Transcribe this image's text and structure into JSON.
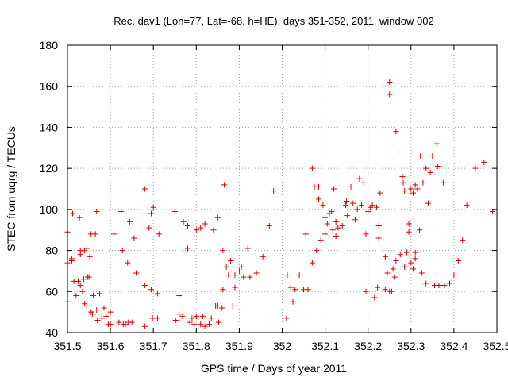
{
  "chart_data": {
    "type": "scatter",
    "title": "Rec. dav1 (Lon=77, Lat=-68, h=HE), days 351-352, 2011, window 002",
    "xlabel": "GPS time / Days of year 2011",
    "ylabel": "STEC from uqrg / TECUs",
    "xlim": [
      351.5,
      352.5
    ],
    "ylim": [
      40,
      180
    ],
    "xticks": [
      "351.5",
      "351.6",
      "351.7",
      "351.8",
      "351.9",
      "352",
      "352.1",
      "352.2",
      "352.3",
      "352.4",
      "352.5"
    ],
    "yticks": [
      "40",
      "60",
      "80",
      "100",
      "120",
      "140",
      "160",
      "180"
    ],
    "grid": true,
    "marker": "+",
    "color": "#e00000",
    "points": [
      [
        351.5,
        89
      ],
      [
        351.5,
        74
      ],
      [
        351.5,
        55
      ],
      [
        351.51,
        76
      ],
      [
        351.51,
        75
      ],
      [
        351.512,
        98
      ],
      [
        351.515,
        65
      ],
      [
        351.52,
        58
      ],
      [
        351.525,
        65
      ],
      [
        351.528,
        96
      ],
      [
        351.53,
        78
      ],
      [
        351.53,
        80
      ],
      [
        351.53,
        63
      ],
      [
        351.535,
        60
      ],
      [
        351.538,
        66
      ],
      [
        351.54,
        80
      ],
      [
        351.54,
        54
      ],
      [
        351.545,
        53
      ],
      [
        351.545,
        81
      ],
      [
        351.547,
        67
      ],
      [
        351.55,
        67
      ],
      [
        351.552,
        77
      ],
      [
        351.555,
        88
      ],
      [
        351.555,
        50
      ],
      [
        351.558,
        49
      ],
      [
        351.56,
        58
      ],
      [
        351.565,
        88
      ],
      [
        351.568,
        99
      ],
      [
        351.568,
        51
      ],
      [
        351.57,
        46
      ],
      [
        351.575,
        59
      ],
      [
        351.58,
        47
      ],
      [
        351.585,
        52
      ],
      [
        351.59,
        48
      ],
      [
        351.595,
        44
      ],
      [
        351.6,
        44
      ],
      [
        351.6,
        50
      ],
      [
        351.608,
        88
      ],
      [
        351.62,
        45
      ],
      [
        351.625,
        99
      ],
      [
        351.628,
        80
      ],
      [
        351.63,
        44
      ],
      [
        351.635,
        44
      ],
      [
        351.64,
        74
      ],
      [
        351.642,
        45
      ],
      [
        351.645,
        94
      ],
      [
        351.65,
        45
      ],
      [
        351.655,
        86
      ],
      [
        351.66,
        69
      ],
      [
        351.68,
        43
      ],
      [
        351.68,
        63
      ],
      [
        351.68,
        110
      ],
      [
        351.69,
        91
      ],
      [
        351.695,
        61
      ],
      [
        351.695,
        98
      ],
      [
        351.698,
        47
      ],
      [
        351.7,
        101
      ],
      [
        351.71,
        59
      ],
      [
        351.71,
        47
      ],
      [
        351.713,
        88
      ],
      [
        351.75,
        99
      ],
      [
        351.752,
        46
      ],
      [
        351.76,
        58
      ],
      [
        351.76,
        49
      ],
      [
        351.768,
        48
      ],
      [
        351.77,
        94
      ],
      [
        351.78,
        92
      ],
      [
        351.78,
        81
      ],
      [
        351.785,
        45
      ],
      [
        351.79,
        47
      ],
      [
        351.795,
        44
      ],
      [
        351.8,
        48
      ],
      [
        351.8,
        90
      ],
      [
        351.81,
        91
      ],
      [
        351.81,
        44
      ],
      [
        351.815,
        48
      ],
      [
        351.82,
        43
      ],
      [
        351.82,
        93
      ],
      [
        351.83,
        44
      ],
      [
        351.835,
        47
      ],
      [
        351.84,
        90
      ],
      [
        351.845,
        53
      ],
      [
        351.85,
        96
      ],
      [
        351.85,
        53
      ],
      [
        351.852,
        45
      ],
      [
        351.86,
        52
      ],
      [
        351.862,
        61
      ],
      [
        351.862,
        80
      ],
      [
        351.865,
        112
      ],
      [
        351.87,
        72
      ],
      [
        351.875,
        68
      ],
      [
        351.88,
        75
      ],
      [
        351.885,
        53
      ],
      [
        351.89,
        68
      ],
      [
        351.89,
        62
      ],
      [
        351.9,
        70
      ],
      [
        351.905,
        72
      ],
      [
        351.91,
        67
      ],
      [
        351.92,
        81
      ],
      [
        351.925,
        67
      ],
      [
        351.94,
        69
      ],
      [
        351.955,
        77
      ],
      [
        351.97,
        92
      ],
      [
        351.98,
        109
      ],
      [
        352.01,
        47
      ],
      [
        352.012,
        68
      ],
      [
        352.02,
        62
      ],
      [
        352.025,
        55
      ],
      [
        352.03,
        61
      ],
      [
        352.04,
        68
      ],
      [
        352.05,
        61
      ],
      [
        352.055,
        88
      ],
      [
        352.06,
        61
      ],
      [
        352.07,
        74
      ],
      [
        352.07,
        120
      ],
      [
        352.075,
        111
      ],
      [
        352.08,
        80
      ],
      [
        352.085,
        111
      ],
      [
        352.085,
        105
      ],
      [
        352.09,
        85
      ],
      [
        352.095,
        102
      ],
      [
        352.1,
        96
      ],
      [
        352.1,
        88
      ],
      [
        352.105,
        93
      ],
      [
        352.11,
        98
      ],
      [
        352.115,
        99
      ],
      [
        352.118,
        90
      ],
      [
        352.12,
        110
      ],
      [
        352.125,
        94
      ],
      [
        352.125,
        87
      ],
      [
        352.13,
        91
      ],
      [
        352.14,
        92
      ],
      [
        352.148,
        102
      ],
      [
        352.15,
        104
      ],
      [
        352.152,
        97
      ],
      [
        352.16,
        111
      ],
      [
        352.165,
        103
      ],
      [
        352.17,
        95
      ],
      [
        352.175,
        100
      ],
      [
        352.18,
        115
      ],
      [
        352.185,
        102
      ],
      [
        352.19,
        113
      ],
      [
        352.195,
        88
      ],
      [
        352.195,
        60
      ],
      [
        352.2,
        99
      ],
      [
        352.205,
        101
      ],
      [
        352.21,
        102
      ],
      [
        352.215,
        57
      ],
      [
        352.22,
        101
      ],
      [
        352.222,
        62
      ],
      [
        352.225,
        92
      ],
      [
        352.225,
        86
      ],
      [
        352.228,
        108
      ],
      [
        352.24,
        77
      ],
      [
        352.24,
        61
      ],
      [
        352.245,
        69
      ],
      [
        352.25,
        60
      ],
      [
        352.25,
        162
      ],
      [
        352.25,
        156
      ],
      [
        352.255,
        60
      ],
      [
        352.258,
        71
      ],
      [
        352.262,
        67
      ],
      [
        352.265,
        75
      ],
      [
        352.265,
        138
      ],
      [
        352.27,
        128
      ],
      [
        352.275,
        78
      ],
      [
        352.28,
        116
      ],
      [
        352.282,
        113
      ],
      [
        352.285,
        109
      ],
      [
        352.285,
        72
      ],
      [
        352.29,
        79
      ],
      [
        352.295,
        93
      ],
      [
        352.295,
        89
      ],
      [
        352.3,
        110
      ],
      [
        352.3,
        74
      ],
      [
        352.305,
        108
      ],
      [
        352.305,
        71
      ],
      [
        352.31,
        112
      ],
      [
        352.31,
        79
      ],
      [
        352.31,
        76
      ],
      [
        352.315,
        110
      ],
      [
        352.32,
        90
      ],
      [
        352.322,
        126
      ],
      [
        352.325,
        69
      ],
      [
        352.328,
        113
      ],
      [
        352.335,
        64
      ],
      [
        352.335,
        120
      ],
      [
        352.34,
        103
      ],
      [
        352.345,
        118
      ],
      [
        352.35,
        126
      ],
      [
        352.355,
        63
      ],
      [
        352.36,
        132
      ],
      [
        352.362,
        121
      ],
      [
        352.365,
        63
      ],
      [
        352.375,
        113
      ],
      [
        352.378,
        63
      ],
      [
        352.39,
        64
      ],
      [
        352.4,
        68
      ],
      [
        352.41,
        75
      ],
      [
        352.42,
        85
      ],
      [
        352.43,
        102
      ],
      [
        352.45,
        120
      ],
      [
        352.47,
        123
      ],
      [
        352.49,
        99
      ]
    ]
  }
}
